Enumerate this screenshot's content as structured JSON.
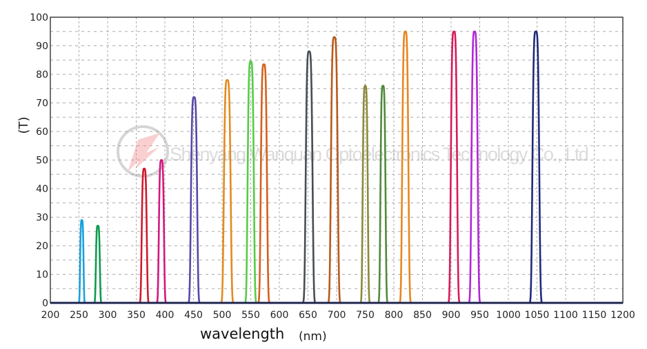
{
  "chart_data": {
    "type": "line",
    "title": "",
    "xlabel": "wavelength",
    "xlabel_unit": "(nm)",
    "ylabel": "(T)",
    "xlim": [
      200,
      1200
    ],
    "ylim": [
      0,
      100
    ],
    "x_ticks": [
      "200",
      "250",
      "300",
      "350",
      "400",
      "450",
      "500",
      "550",
      "600",
      "650",
      "700",
      "750",
      "800",
      "850",
      "900",
      "950",
      "1000",
      "1050",
      "1100",
      "1150",
      "1200"
    ],
    "y_ticks": [
      "0",
      "10",
      "20",
      "30",
      "40",
      "50",
      "60",
      "70",
      "80",
      "90",
      "100"
    ],
    "grid": true,
    "legend": "none",
    "baseline_color": "#1f2a7a",
    "watermark": "Shenyang Wanquan Optoelectronics Technology Co., Ltd",
    "series": [
      {
        "center": 255,
        "peak": 29,
        "fwhm": 6,
        "color": "#1aa0dc"
      },
      {
        "center": 283,
        "peak": 27,
        "fwhm": 7,
        "color": "#0f9a4f"
      },
      {
        "center": 364,
        "peak": 47,
        "fwhm": 9,
        "color": "#d0192c"
      },
      {
        "center": 394,
        "peak": 50,
        "fwhm": 9,
        "color": "#d3177f"
      },
      {
        "center": 451,
        "peak": 72,
        "fwhm": 11,
        "color": "#5a46a8"
      },
      {
        "center": 509,
        "peak": 78,
        "fwhm": 12,
        "color": "#e48a1e"
      },
      {
        "center": 550,
        "peak": 84.5,
        "fwhm": 11,
        "color": "#55cc44"
      },
      {
        "center": 573,
        "peak": 83.5,
        "fwhm": 11,
        "color": "#d4601c"
      },
      {
        "center": 652,
        "peak": 88,
        "fwhm": 12,
        "color": "#454d55"
      },
      {
        "center": 696,
        "peak": 93,
        "fwhm": 12,
        "color": "#b85a1a"
      },
      {
        "center": 750,
        "peak": 76,
        "fwhm": 9,
        "color": "#8a8a3a"
      },
      {
        "center": 781,
        "peak": 76,
        "fwhm": 9,
        "color": "#4f8a3a"
      },
      {
        "center": 820,
        "peak": 95,
        "fwhm": 11,
        "color": "#e8861e"
      },
      {
        "center": 905,
        "peak": 95,
        "fwhm": 11,
        "color": "#d81a5a"
      },
      {
        "center": 941,
        "peak": 95,
        "fwhm": 11,
        "color": "#b225d8"
      },
      {
        "center": 1048,
        "peak": 95,
        "fwhm": 12,
        "color": "#1f2a7a"
      }
    ]
  }
}
